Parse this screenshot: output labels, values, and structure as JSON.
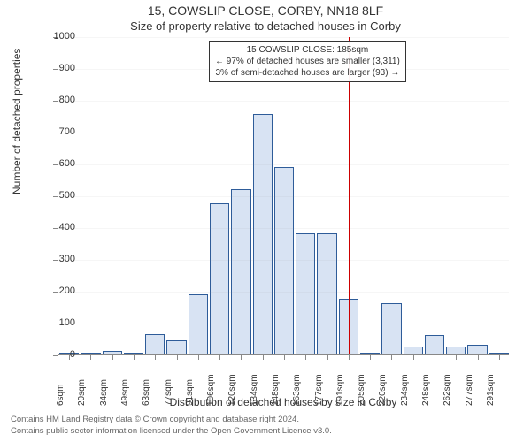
{
  "title": "15, COWSLIP CLOSE, CORBY, NN18 8LF",
  "subtitle": "Size of property relative to detached houses in Corby",
  "y_axis": {
    "label": "Number of detached properties",
    "ticks": [
      0,
      100,
      200,
      300,
      400,
      500,
      600,
      700,
      800,
      900,
      1000
    ],
    "min": 0,
    "max": 1000
  },
  "x_axis": {
    "label": "Distribution of detached houses by size in Corby",
    "ticks": [
      "6sqm",
      "20sqm",
      "34sqm",
      "49sqm",
      "63sqm",
      "77sqm",
      "91sqm",
      "106sqm",
      "120sqm",
      "134sqm",
      "148sqm",
      "163sqm",
      "177sqm",
      "191sqm",
      "205sqm",
      "220sqm",
      "234sqm",
      "248sqm",
      "262sqm",
      "277sqm",
      "291sqm"
    ]
  },
  "bars": [
    3,
    3,
    10,
    5,
    63,
    45,
    190,
    475,
    520,
    755,
    590,
    380,
    380,
    176,
    4,
    160,
    24,
    62,
    26,
    30,
    2
  ],
  "marker": {
    "category_index": 13,
    "color": "#cc0000"
  },
  "annotation": {
    "lines": [
      "15 COWSLIP CLOSE: 185sqm",
      "← 97% of detached houses are smaller (3,311)",
      "3% of semi-detached houses are larger (93) →"
    ]
  },
  "footer": {
    "line1": "Contains HM Land Registry data © Crown copyright and database right 2024.",
    "line2": "Contains public sector information licensed under the Open Government Licence v3.0."
  },
  "style": {
    "bar_fill": "#d8e3f3",
    "bar_stroke": "#2e5c99",
    "background": "#ffffff",
    "axis_color": "#888888",
    "title_fontsize": 14,
    "subtitle_fontsize": 13,
    "label_fontsize": 12,
    "tick_fontsize": 11,
    "xtick_fontsize": 10,
    "footer_fontsize": 9.5
  }
}
